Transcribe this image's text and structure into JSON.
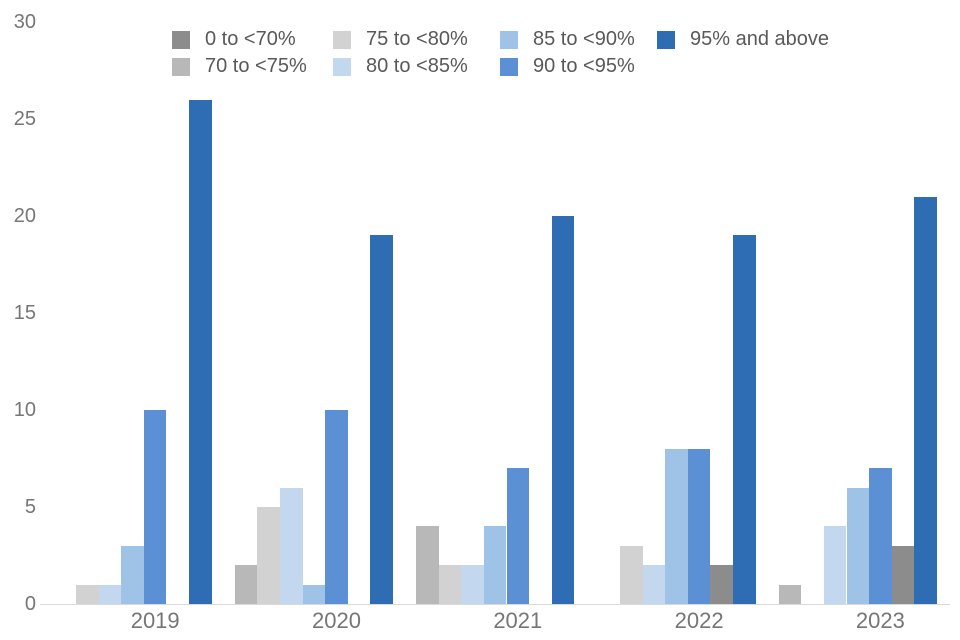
{
  "chart_data": {
    "type": "bar",
    "title": "",
    "xlabel": "",
    "ylabel": "",
    "categories": [
      "2019",
      "2020",
      "2021",
      "2022",
      "2023"
    ],
    "series": [
      {
        "name": "0 to <70%",
        "color": "#8C8C8C",
        "values": [
          0,
          0,
          0,
          2,
          3
        ]
      },
      {
        "name": "70 to <75%",
        "color": "#B8B8B8",
        "values": [
          0,
          2,
          4,
          0,
          1
        ]
      },
      {
        "name": "75 to <80%",
        "color": "#D2D2D2",
        "values": [
          1,
          5,
          2,
          3,
          0
        ]
      },
      {
        "name": "80 to <85%",
        "color": "#C3D7EE",
        "values": [
          1,
          6,
          2,
          2,
          4
        ]
      },
      {
        "name": "85 to <90%",
        "color": "#9FC2E7",
        "values": [
          3,
          1,
          4,
          8,
          6
        ]
      },
      {
        "name": "90 to <95%",
        "color": "#5B90D4",
        "values": [
          10,
          10,
          7,
          8,
          7
        ]
      },
      {
        "name": "95% and above",
        "color": "#2E6DB4",
        "values": [
          26,
          19,
          20,
          19,
          21
        ]
      }
    ],
    "plot_order": [
      "70 to <75%",
      "75 to <80%",
      "80 to <85%",
      "85 to <90%",
      "90 to <95%",
      "0 to <70%",
      "95% and above"
    ],
    "legend_rows": [
      [
        "0 to <70%",
        "75 to <80%",
        "85 to <90%",
        "95% and above"
      ],
      [
        "70 to <75%",
        "80 to <85%",
        "90 to <95%"
      ]
    ],
    "legend_position": "top",
    "y_ticks": [
      0,
      5,
      10,
      15,
      20,
      25,
      30
    ],
    "ylim": [
      0,
      30
    ],
    "grid": false
  }
}
